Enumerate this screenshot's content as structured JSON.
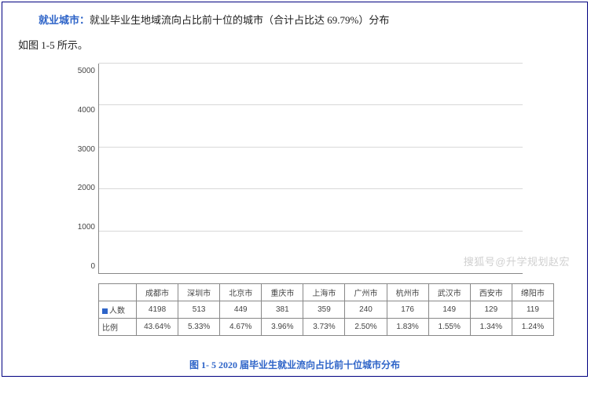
{
  "intro": {
    "label": "就业城市：",
    "text_a": "就业毕业生地域流向占比前十位的城市（合计占比达 69.79%）分布",
    "text_b": "如图 1-5 所示。"
  },
  "chart": {
    "type": "bar",
    "ylim": [
      0,
      5000
    ],
    "ytick_step": 1000,
    "yticks": [
      "5000",
      "4000",
      "3000",
      "2000",
      "1000",
      "0"
    ],
    "bar_color": "#2e64c8",
    "grid_color": "#d8d8d8",
    "axis_color": "#888888",
    "background_color": "#ffffff",
    "categories": [
      "成都市",
      "深圳市",
      "北京市",
      "重庆市",
      "上海市",
      "广州市",
      "杭州市",
      "武汉市",
      "西安市",
      "绵阳市"
    ],
    "values": [
      4198,
      513,
      449,
      381,
      359,
      240,
      176,
      149,
      129,
      119
    ],
    "ratios": [
      "43.64%",
      "5.33%",
      "4.67%",
      "3.96%",
      "3.73%",
      "2.50%",
      "1.83%",
      "1.55%",
      "1.34%",
      "1.24%"
    ],
    "row_labels": {
      "count": "人数",
      "ratio": "比例"
    },
    "label_fontsize": 10
  },
  "caption": "图 1- 5   2020 届毕业生就业流向占比前十位城市分布",
  "watermark": "搜狐号@升学规划赵宏"
}
